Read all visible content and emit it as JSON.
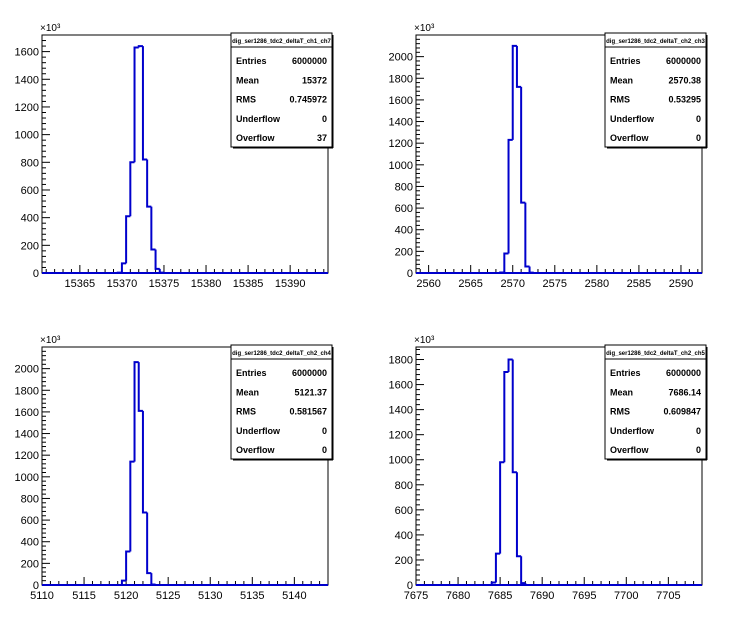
{
  "chart_data": [
    {
      "type": "bar",
      "title": "dig_ser1286_tdc2_deltaT_ch1_ch7",
      "exponent_label": "×10³",
      "xlim": [
        15360.5,
        15394.5
      ],
      "xticks": [
        15365,
        15370,
        15375,
        15380,
        15385,
        15390
      ],
      "ylim": [
        0,
        1720
      ],
      "yticks": [
        0,
        200,
        400,
        600,
        800,
        1000,
        1200,
        1400,
        1600
      ],
      "bin_width": 0.5,
      "bins": [
        [
          15369.5,
          3
        ],
        [
          15370.0,
          70
        ],
        [
          15370.5,
          410
        ],
        [
          15371.0,
          800
        ],
        [
          15371.5,
          1630
        ],
        [
          15372.0,
          1640
        ],
        [
          15372.5,
          820
        ],
        [
          15373.0,
          480
        ],
        [
          15373.5,
          170
        ],
        [
          15374.0,
          30
        ],
        [
          15374.5,
          3
        ]
      ],
      "stats": [
        {
          "label": "Entries",
          "value": "6000000"
        },
        {
          "label": "Mean",
          "value": "15372"
        },
        {
          "label": "RMS",
          "value": "0.745972"
        },
        {
          "label": "Underflow",
          "value": "0"
        },
        {
          "label": "Overflow",
          "value": "37"
        }
      ]
    },
    {
      "type": "bar",
      "title": "dig_ser1286_tdc2_deltaT_ch2_ch3",
      "exponent_label": "×10³",
      "xlim": [
        2558.5,
        2592.5
      ],
      "xticks": [
        2560,
        2565,
        2570,
        2575,
        2580,
        2585,
        2590
      ],
      "ylim": [
        0,
        2200
      ],
      "yticks": [
        0,
        200,
        400,
        600,
        800,
        1000,
        1200,
        1400,
        1600,
        1800,
        2000
      ],
      "bin_width": 0.5,
      "bins": [
        [
          2568.5,
          5
        ],
        [
          2569.0,
          180
        ],
        [
          2569.5,
          1230
        ],
        [
          2570.0,
          2100
        ],
        [
          2570.5,
          1720
        ],
        [
          2571.0,
          650
        ],
        [
          2571.5,
          60
        ],
        [
          2572.0,
          3
        ]
      ],
      "stats": [
        {
          "label": "Entries",
          "value": "6000000"
        },
        {
          "label": "Mean",
          "value": "2570.38"
        },
        {
          "label": "RMS",
          "value": "0.53295"
        },
        {
          "label": "Underflow",
          "value": "0"
        },
        {
          "label": "Overflow",
          "value": "0"
        }
      ]
    },
    {
      "type": "bar",
      "title": "dig_ser1286_tdc2_deltaT_ch2_ch4",
      "exponent_label": "×10³",
      "xlim": [
        5110,
        5144
      ],
      "xticks": [
        5110,
        5115,
        5120,
        5125,
        5130,
        5135,
        5140
      ],
      "ylim": [
        0,
        2200
      ],
      "yticks": [
        0,
        200,
        400,
        600,
        800,
        1000,
        1200,
        1400,
        1600,
        1800,
        2000
      ],
      "bin_width": 0.5,
      "bins": [
        [
          5119.5,
          40
        ],
        [
          5120.0,
          310
        ],
        [
          5120.5,
          1140
        ],
        [
          5121.0,
          2060
        ],
        [
          5121.5,
          1610
        ],
        [
          5122.0,
          670
        ],
        [
          5122.5,
          110
        ],
        [
          5123.0,
          5
        ]
      ],
      "stats": [
        {
          "label": "Entries",
          "value": "6000000"
        },
        {
          "label": "Mean",
          "value": "5121.37"
        },
        {
          "label": "RMS",
          "value": "0.581567"
        },
        {
          "label": "Underflow",
          "value": "0"
        },
        {
          "label": "Overflow",
          "value": "0"
        }
      ]
    },
    {
      "type": "bar",
      "title": "dig_ser1286_tdc2_deltaT_ch2_ch5",
      "exponent_label": "×10³",
      "xlim": [
        7675,
        7709
      ],
      "xticks": [
        7675,
        7680,
        7685,
        7690,
        7695,
        7700,
        7705
      ],
      "ylim": [
        0,
        1900
      ],
      "yticks": [
        0,
        200,
        400,
        600,
        800,
        1000,
        1200,
        1400,
        1600,
        1800
      ],
      "bin_width": 0.5,
      "bins": [
        [
          7684.0,
          20
        ],
        [
          7684.5,
          250
        ],
        [
          7685.0,
          980
        ],
        [
          7685.5,
          1700
        ],
        [
          7686.0,
          1800
        ],
        [
          7686.5,
          900
        ],
        [
          7687.0,
          230
        ],
        [
          7687.5,
          15
        ]
      ],
      "stats": [
        {
          "label": "Entries",
          "value": "6000000"
        },
        {
          "label": "Mean",
          "value": "7686.14"
        },
        {
          "label": "RMS",
          "value": "0.609847"
        },
        {
          "label": "Underflow",
          "value": "0"
        },
        {
          "label": "Overflow",
          "value": "0"
        }
      ]
    }
  ]
}
